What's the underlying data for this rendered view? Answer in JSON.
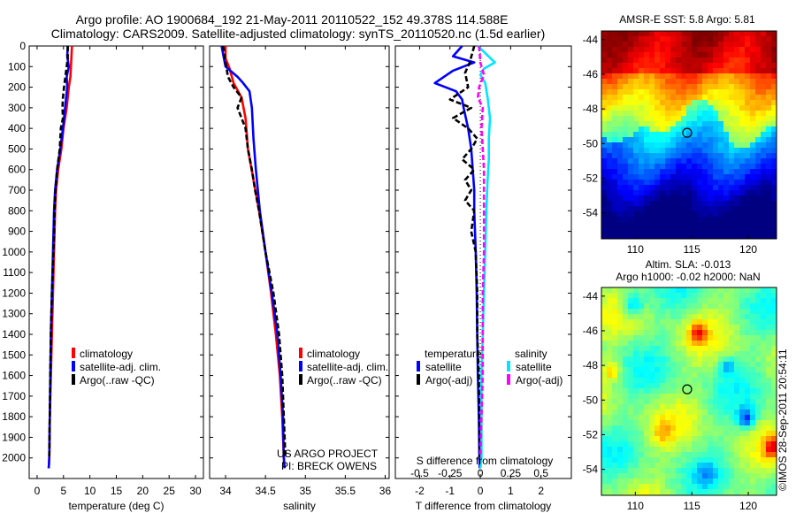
{
  "header": {
    "title_line1": "Argo profile: AO 1900684_192 21-May-2011 20110522_152 49.378S 114.588E",
    "title_line2": "Climatology: CARS2009. Satellite-adjusted climatology: synTS_20110520.nc (1.5d earlier)"
  },
  "colors": {
    "climatology": "#ff0000",
    "satellite": "#0000ff",
    "argo": "#000000",
    "salinity_satellite": "#00e5ff",
    "salinity_argo": "#ff00ff"
  },
  "credits": {
    "project": "US ARGO PROJECT",
    "pi": "PI: BRECK OWENS",
    "imos": "©IMOS 28-Sep-2011 20:54:11"
  },
  "chart_data": [
    {
      "id": "temperature",
      "type": "line",
      "xlabel": "temperature (deg C)",
      "xlim": [
        -1.5,
        31.5
      ],
      "xticks": [
        0,
        5,
        10,
        15,
        20,
        25,
        30
      ],
      "ylim": [
        0,
        2100
      ],
      "yticks": [
        0,
        100,
        200,
        300,
        400,
        500,
        600,
        700,
        800,
        900,
        1000,
        1100,
        1200,
        1300,
        1400,
        1500,
        1600,
        1700,
        1800,
        1900,
        2000
      ],
      "legend": [
        "climatology",
        "satellite-adj. clim.",
        "Argo(..raw -QC)"
      ],
      "series": [
        {
          "name": "climatology",
          "color": "#ff0000",
          "dash": "",
          "points": [
            [
              6.6,
              0
            ],
            [
              6.4,
              100
            ],
            [
              6.3,
              150
            ],
            [
              6.0,
              200
            ],
            [
              5.6,
              300
            ],
            [
              5.0,
              400
            ],
            [
              4.6,
              500
            ],
            [
              4.0,
              600
            ],
            [
              3.6,
              700
            ],
            [
              3.4,
              800
            ],
            [
              3.2,
              1000
            ],
            [
              3.0,
              1200
            ],
            [
              2.8,
              1400
            ],
            [
              2.6,
              1600
            ],
            [
              2.4,
              1800
            ],
            [
              2.3,
              2000
            ],
            [
              2.2,
              2050
            ]
          ]
        },
        {
          "name": "satellite-adj. clim.",
          "color": "#0000ff",
          "dash": "",
          "points": [
            [
              5.8,
              0
            ],
            [
              5.7,
              50
            ],
            [
              6.0,
              100
            ],
            [
              5.6,
              150
            ],
            [
              5.7,
              200
            ],
            [
              5.3,
              300
            ],
            [
              4.9,
              400
            ],
            [
              4.4,
              500
            ],
            [
              3.8,
              600
            ],
            [
              3.4,
              700
            ],
            [
              3.2,
              800
            ],
            [
              3.0,
              1000
            ],
            [
              2.8,
              1200
            ],
            [
              2.6,
              1400
            ],
            [
              2.5,
              1600
            ],
            [
              2.4,
              1800
            ],
            [
              2.3,
              2000
            ],
            [
              2.2,
              2050
            ]
          ]
        },
        {
          "name": "Argo(..raw -QC)",
          "color": "#000000",
          "dash": "6,3",
          "points": [
            [
              5.8,
              0
            ],
            [
              5.8,
              60
            ],
            [
              5.5,
              120
            ],
            [
              5.1,
              200
            ],
            [
              4.9,
              250
            ],
            [
              4.8,
              300
            ],
            [
              4.9,
              350
            ],
            [
              4.5,
              400
            ],
            [
              4.3,
              500
            ],
            [
              3.8,
              600
            ],
            [
              3.5,
              700
            ],
            [
              3.3,
              800
            ],
            [
              3.1,
              1000
            ],
            [
              2.8,
              1200
            ],
            [
              2.6,
              1400
            ],
            [
              2.5,
              1600
            ],
            [
              2.4,
              1800
            ],
            [
              2.3,
              2000
            ]
          ]
        }
      ]
    },
    {
      "id": "salinity",
      "type": "line",
      "xlabel": "salinity",
      "xlim": [
        33.8,
        36.05
      ],
      "xticks": [
        34,
        34.5,
        35,
        35.5,
        36
      ],
      "ylim": [
        0,
        2100
      ],
      "legend": [
        "climatology",
        "satellite-adj. clim.",
        "Argo(..raw -QC)"
      ],
      "series": [
        {
          "name": "climatology",
          "color": "#ff0000",
          "dash": "",
          "points": [
            [
              34.0,
              0
            ],
            [
              34.0,
              60
            ],
            [
              34.05,
              110
            ],
            [
              34.1,
              180
            ],
            [
              34.2,
              250
            ],
            [
              34.25,
              350
            ],
            [
              34.28,
              500
            ],
            [
              34.35,
              650
            ],
            [
              34.42,
              800
            ],
            [
              34.5,
              1000
            ],
            [
              34.57,
              1200
            ],
            [
              34.63,
              1400
            ],
            [
              34.68,
              1600
            ],
            [
              34.71,
              1800
            ],
            [
              34.73,
              2000
            ],
            [
              34.74,
              2050
            ]
          ]
        },
        {
          "name": "satellite-adj. clim.",
          "color": "#0000ff",
          "dash": "",
          "points": [
            [
              33.95,
              0
            ],
            [
              33.98,
              60
            ],
            [
              34.0,
              100
            ],
            [
              34.15,
              150
            ],
            [
              34.22,
              180
            ],
            [
              34.3,
              220
            ],
            [
              34.33,
              300
            ],
            [
              34.35,
              450
            ],
            [
              34.38,
              600
            ],
            [
              34.43,
              800
            ],
            [
              34.5,
              1000
            ],
            [
              34.58,
              1200
            ],
            [
              34.65,
              1400
            ],
            [
              34.69,
              1600
            ],
            [
              34.72,
              1800
            ],
            [
              34.73,
              2000
            ],
            [
              34.74,
              2050
            ]
          ]
        },
        {
          "name": "Argo(..raw -QC)",
          "color": "#000000",
          "dash": "6,3",
          "points": [
            [
              33.97,
              0
            ],
            [
              34.0,
              80
            ],
            [
              34.03,
              150
            ],
            [
              34.1,
              200
            ],
            [
              34.2,
              250
            ],
            [
              34.15,
              300
            ],
            [
              34.2,
              350
            ],
            [
              34.25,
              400
            ],
            [
              34.28,
              500
            ],
            [
              34.33,
              600
            ],
            [
              34.37,
              700
            ],
            [
              34.42,
              800
            ],
            [
              34.5,
              1000
            ],
            [
              34.6,
              1200
            ],
            [
              34.67,
              1400
            ],
            [
              34.71,
              1600
            ],
            [
              34.73,
              1800
            ],
            [
              34.75,
              2000
            ]
          ]
        }
      ]
    },
    {
      "id": "difference",
      "type": "line",
      "xlabel": "T difference from climatology",
      "x2label": "S difference from climatology",
      "xlim": [
        -2.8,
        3.0
      ],
      "xticks": [
        -2,
        -1,
        0,
        1,
        2
      ],
      "x2lim": [
        -0.7,
        0.75
      ],
      "x2ticks": [
        -0.5,
        -0.25,
        0,
        0.25,
        0.5
      ],
      "x2ticklabels": [
        "-0.5",
        "-0.25",
        "0",
        "0.25",
        "0.5"
      ],
      "ylim": [
        0,
        2100
      ],
      "legend_titles": [
        "temperature",
        "salinity"
      ],
      "legend": [
        "satellite",
        "Argo(-adj)",
        "satellite",
        "Argo(-adj)"
      ],
      "series": [
        {
          "name": "satellite",
          "group": "temperature",
          "color": "#0000ff",
          "dash": "",
          "points": [
            [
              -0.6,
              0
            ],
            [
              -0.9,
              50
            ],
            [
              -0.2,
              80
            ],
            [
              -0.9,
              120
            ],
            [
              -1.5,
              180
            ],
            [
              -0.8,
              220
            ],
            [
              -0.6,
              260
            ],
            [
              -0.55,
              300
            ],
            [
              -0.4,
              400
            ],
            [
              -0.3,
              500
            ],
            [
              -0.25,
              600
            ],
            [
              -0.2,
              700
            ],
            [
              -0.2,
              800
            ],
            [
              -0.15,
              1000
            ],
            [
              -0.12,
              1200
            ],
            [
              -0.1,
              1400
            ],
            [
              -0.08,
              1600
            ],
            [
              -0.05,
              1800
            ],
            [
              -0.03,
              2000
            ],
            [
              -0.02,
              2050
            ]
          ]
        },
        {
          "name": "Argo(-adj)",
          "group": "temperature",
          "color": "#000000",
          "dash": "6,3",
          "points": [
            [
              -0.2,
              0
            ],
            [
              -0.35,
              80
            ],
            [
              -0.5,
              130
            ],
            [
              -0.4,
              200
            ],
            [
              -1.0,
              260
            ],
            [
              -0.3,
              300
            ],
            [
              -0.9,
              350
            ],
            [
              -0.4,
              400
            ],
            [
              -0.1,
              450
            ],
            [
              -0.3,
              500
            ],
            [
              -0.6,
              550
            ],
            [
              -0.2,
              600
            ],
            [
              -0.5,
              650
            ],
            [
              -0.3,
              700
            ],
            [
              -0.5,
              750
            ],
            [
              -0.2,
              800
            ],
            [
              -0.3,
              900
            ],
            [
              -0.15,
              1000
            ],
            [
              -0.1,
              1200
            ],
            [
              -0.1,
              1400
            ],
            [
              -0.05,
              1600
            ],
            [
              -0.03,
              1800
            ],
            [
              -0.02,
              2000
            ]
          ]
        },
        {
          "name": "satellite",
          "group": "salinity",
          "color": "#00e5ff",
          "dash": "",
          "points": [
            [
              -0.02,
              0
            ],
            [
              0.05,
              40
            ],
            [
              0.12,
              80
            ],
            [
              0.03,
              110
            ],
            [
              0.0,
              140
            ],
            [
              0.04,
              180
            ],
            [
              0.06,
              250
            ],
            [
              0.08,
              350
            ],
            [
              0.07,
              450
            ],
            [
              0.07,
              550
            ],
            [
              0.06,
              650
            ],
            [
              0.05,
              800
            ],
            [
              0.04,
              1000
            ],
            [
              0.03,
              1200
            ],
            [
              0.02,
              1400
            ],
            [
              0.01,
              1600
            ],
            [
              0.01,
              1800
            ],
            [
              0.01,
              2000
            ],
            [
              0.0,
              2050
            ]
          ]
        },
        {
          "name": "Argo(-adj)",
          "group": "salinity",
          "color": "#ff00ff",
          "dash": "6,3",
          "points": [
            [
              -0.01,
              0
            ],
            [
              0.0,
              80
            ],
            [
              0.03,
              140
            ],
            [
              -0.01,
              200
            ],
            [
              -0.02,
              250
            ],
            [
              0.02,
              300
            ],
            [
              0.01,
              400
            ],
            [
              0.02,
              500
            ],
            [
              0.03,
              600
            ],
            [
              0.03,
              700
            ],
            [
              0.03,
              800
            ],
            [
              0.03,
              900
            ],
            [
              0.03,
              1000
            ],
            [
              0.02,
              1200
            ],
            [
              0.02,
              1400
            ],
            [
              0.02,
              1600
            ],
            [
              0.01,
              1800
            ],
            [
              0.0,
              2000
            ]
          ]
        }
      ]
    },
    {
      "id": "sst_map",
      "type": "heatmap",
      "title": "AMSR-E SST: 5.8 Argo: 5.81",
      "xlim": [
        107,
        122.5
      ],
      "xticks": [
        110,
        115,
        120
      ],
      "ylim": [
        -55.5,
        -43.5
      ],
      "yticks": [
        -54,
        -52,
        -50,
        -48,
        -46,
        -44
      ],
      "marker": [
        114.588,
        -49.378
      ]
    },
    {
      "id": "sla_map",
      "type": "heatmap",
      "title_line1": "Altim. SLA: -0.013",
      "title_line2": "Argo h1000: -0.02 h2000: NaN",
      "xlim": [
        107,
        122.5
      ],
      "xticks": [
        110,
        115,
        120
      ],
      "ylim": [
        -55.5,
        -43.5
      ],
      "yticks": [
        -54,
        -52,
        -50,
        -48,
        -46,
        -44
      ],
      "marker": [
        114.588,
        -49.378
      ]
    }
  ]
}
